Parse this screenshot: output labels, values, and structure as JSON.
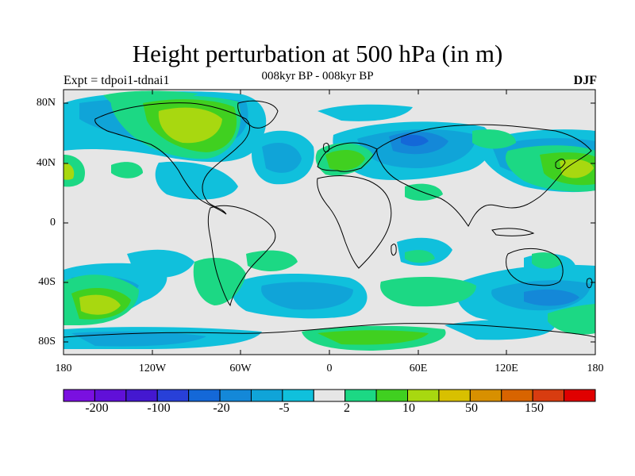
{
  "title": "Height perturbation at 500 hPa (in m)",
  "subtitle": "008kyr BP - 008kyr BP",
  "experiment_label": "Expt = tdpoi1-tdnai1",
  "season_label": "DJF",
  "lat_ticks": [
    "80N",
    "40N",
    "0",
    "40S",
    "80S"
  ],
  "lon_ticks": [
    "180",
    "120W",
    "60W",
    "0",
    "60E",
    "120E",
    "180"
  ],
  "colorbar": {
    "colors": [
      "#7a10e0",
      "#6010d8",
      "#4418d0",
      "#2840d8",
      "#1468d8",
      "#1488d8",
      "#10a4d8",
      "#10c0dc",
      "#e6e6e6",
      "#1cd884",
      "#40d020",
      "#a8d810",
      "#d8c000",
      "#d89000",
      "#d86400",
      "#d83c10",
      "#e00000"
    ],
    "labels": [
      "-200",
      "-100",
      "-20",
      "-5",
      "2",
      "10",
      "50",
      "150"
    ]
  },
  "palette": {
    "background": "#e6e6e6",
    "coast": "#000000"
  }
}
